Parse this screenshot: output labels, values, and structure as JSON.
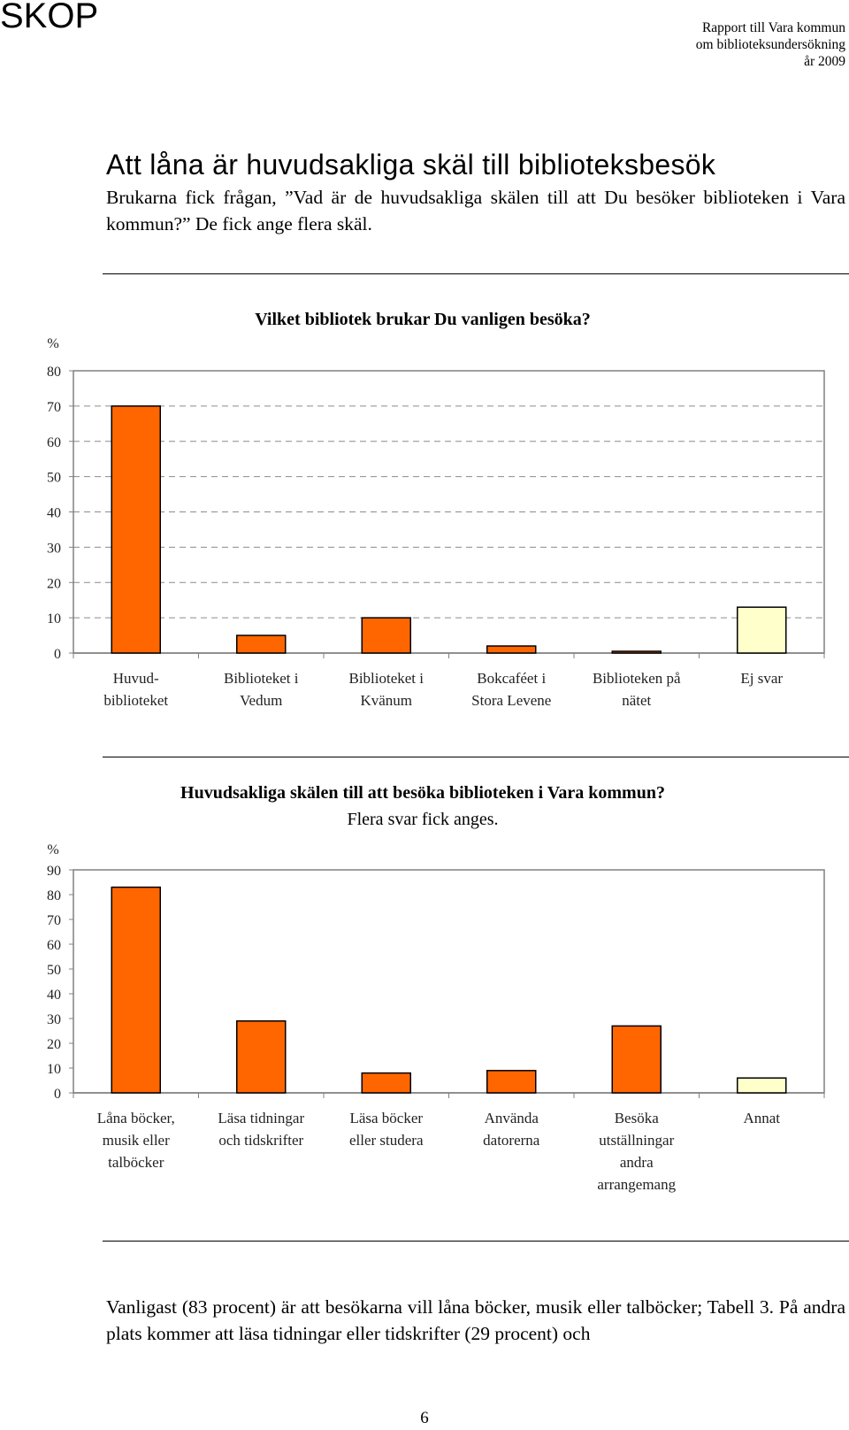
{
  "header": {
    "logo": "SKOP",
    "report_lines": [
      "Rapport till Vara kommun",
      "om biblioteksundersökning",
      "år 2009"
    ]
  },
  "section": {
    "title": "Att låna är huvudsakliga skäl till biblioteksbesök",
    "intro": "Brukarna fick frågan, ”Vad är de huvudsakliga skälen till att Du besöker biblioteken i Vara kommun?” De fick ange flera skäl."
  },
  "chart_data": [
    {
      "type": "bar",
      "title": "Vilket bibliotek brukar Du vanligen besöka?",
      "ylabel": "%",
      "ylim": [
        0,
        80
      ],
      "yticks": [
        "0",
        "10",
        "20",
        "30",
        "40",
        "50",
        "60",
        "70",
        "80"
      ],
      "grid": true,
      "categories": [
        [
          "Huvud-",
          "biblioteket"
        ],
        [
          "Biblioteket i",
          "Vedum"
        ],
        [
          "Biblioteket i",
          "Kvänum"
        ],
        [
          "Bokcaféet i",
          "Stora Levene"
        ],
        [
          "Biblioteken på",
          "nätet"
        ],
        [
          "Ej svar"
        ]
      ],
      "values": [
        70,
        5,
        10,
        2,
        0.5,
        13
      ],
      "colors": [
        "#ff6600",
        "#ff6600",
        "#ff6600",
        "#ff6600",
        "#ff6600",
        "#ffffcc"
      ]
    },
    {
      "type": "bar",
      "title": "Huvudsakliga skälen till att besöka biblioteken i Vara kommun?",
      "subtitle": "Flera svar fick anges.",
      "ylabel": "%",
      "ylim": [
        0,
        90
      ],
      "yticks": [
        "0",
        "10",
        "20",
        "30",
        "40",
        "50",
        "60",
        "70",
        "80",
        "90"
      ],
      "grid": false,
      "categories": [
        [
          "Låna böcker,",
          "musik eller",
          "talböcker"
        ],
        [
          "Läsa tidningar",
          "och tidskrifter"
        ],
        [
          "Läsa böcker",
          "eller studera"
        ],
        [
          "Använda",
          "datorerna"
        ],
        [
          "Besöka",
          "utställningar",
          "andra",
          "arrangemang"
        ],
        [
          "Annat"
        ]
      ],
      "values": [
        83,
        29,
        8,
        9,
        27,
        6
      ],
      "colors": [
        "#ff6600",
        "#ff6600",
        "#ff6600",
        "#ff6600",
        "#ff6600",
        "#ffffcc"
      ]
    }
  ],
  "conclusion": "Vanligast (83 procent) är att besökarna vill låna böcker, musik eller talböcker; Tabell 3. På andra plats kommer att läsa tidningar eller tidskrifter (29 procent) och",
  "page_number": "6"
}
